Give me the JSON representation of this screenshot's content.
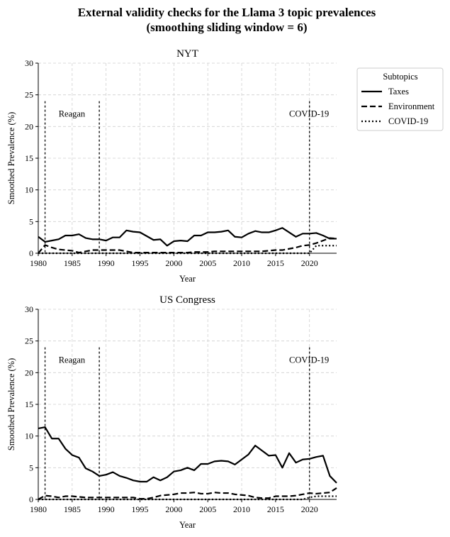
{
  "figure": {
    "title_line1": "External validity checks for the Llama 3 topic prevalences",
    "title_line2": "(smoothing sliding window = 6)"
  },
  "legend": {
    "title": "Subtopics",
    "placement": "upper-right-outside",
    "entries": [
      {
        "label": "Taxes",
        "style": "solid"
      },
      {
        "label": "Environment",
        "style": "dashed"
      },
      {
        "label": "COVID-19",
        "style": "dotted"
      }
    ]
  },
  "chart_data": [
    {
      "type": "line",
      "title": "NYT",
      "xlabel": "Year",
      "ylabel": "Smoothed Prevalence (%)",
      "xlim": [
        1980,
        2024
      ],
      "ylim": [
        0,
        30
      ],
      "xticks": [
        1980,
        1985,
        1990,
        1995,
        2000,
        2005,
        2010,
        2015,
        2020
      ],
      "yticks": [
        0,
        5,
        10,
        15,
        20,
        25,
        30
      ],
      "grid": true,
      "x": [
        1980,
        1981,
        1982,
        1983,
        1984,
        1985,
        1986,
        1987,
        1988,
        1989,
        1990,
        1991,
        1992,
        1993,
        1994,
        1995,
        1996,
        1997,
        1998,
        1999,
        2000,
        2001,
        2002,
        2003,
        2004,
        2005,
        2006,
        2007,
        2008,
        2009,
        2010,
        2011,
        2012,
        2013,
        2014,
        2015,
        2016,
        2017,
        2018,
        2019,
        2020,
        2021,
        2022,
        2023,
        2024
      ],
      "series": [
        {
          "name": "Taxes",
          "style": "solid",
          "values": [
            2.6,
            1.8,
            2.0,
            2.2,
            2.8,
            2.8,
            3.0,
            2.4,
            2.2,
            2.2,
            2.0,
            2.5,
            2.5,
            3.6,
            3.4,
            3.3,
            2.7,
            2.1,
            2.2,
            1.2,
            1.9,
            2.0,
            1.9,
            2.8,
            2.8,
            3.3,
            3.3,
            3.4,
            3.6,
            2.6,
            2.5,
            3.1,
            3.5,
            3.3,
            3.3,
            3.6,
            4.0,
            3.3,
            2.6,
            3.1,
            3.1,
            3.2,
            2.8,
            2.3,
            2.3
          ]
        },
        {
          "name": "Environment",
          "style": "dashed",
          "values": [
            0.0,
            1.3,
            0.9,
            0.6,
            0.5,
            0.4,
            0.1,
            0.3,
            0.5,
            0.5,
            0.5,
            0.5,
            0.5,
            0.3,
            0.1,
            0.1,
            0.1,
            0.1,
            0.1,
            0.1,
            0.1,
            0.1,
            0.1,
            0.2,
            0.2,
            0.2,
            0.3,
            0.3,
            0.3,
            0.3,
            0.3,
            0.3,
            0.3,
            0.3,
            0.4,
            0.5,
            0.5,
            0.7,
            0.9,
            1.2,
            1.3,
            1.6,
            2.0,
            2.4,
            2.3
          ]
        },
        {
          "name": "COVID-19",
          "style": "dotted",
          "values": [
            0,
            0,
            0,
            0,
            0,
            0,
            0,
            0,
            0,
            0,
            0,
            0,
            0,
            0,
            0,
            0,
            0,
            0,
            0,
            0,
            0,
            0,
            0,
            0,
            0,
            0,
            0,
            0,
            0,
            0,
            0,
            0,
            0,
            0,
            0,
            0,
            0,
            0,
            0,
            0,
            0,
            1.2,
            1.2,
            1.2,
            1.2
          ]
        }
      ],
      "vlines": [
        1981,
        1989,
        2020
      ],
      "annotations": [
        {
          "text": "Reagan",
          "x": 1983,
          "y": 22
        },
        {
          "text": "COVID-19",
          "x": 2017,
          "y": 22
        }
      ]
    },
    {
      "type": "line",
      "title": "US Congress",
      "xlabel": "Year",
      "ylabel": "Smoothed Prevalence (%)",
      "xlim": [
        1980,
        2024
      ],
      "ylim": [
        0,
        30
      ],
      "xticks": [
        1980,
        1985,
        1990,
        1995,
        2000,
        2005,
        2010,
        2015,
        2020
      ],
      "yticks": [
        0,
        5,
        10,
        15,
        20,
        25,
        30
      ],
      "grid": true,
      "x": [
        1980,
        1981,
        1982,
        1983,
        1984,
        1985,
        1986,
        1987,
        1988,
        1989,
        1990,
        1991,
        1992,
        1993,
        1994,
        1995,
        1996,
        1997,
        1998,
        1999,
        2000,
        2001,
        2002,
        2003,
        2004,
        2005,
        2006,
        2007,
        2008,
        2009,
        2010,
        2011,
        2012,
        2013,
        2014,
        2015,
        2016,
        2017,
        2018,
        2019,
        2020,
        2021,
        2022,
        2023,
        2024
      ],
      "series": [
        {
          "name": "Taxes",
          "style": "solid",
          "values": [
            11.2,
            11.4,
            9.6,
            9.6,
            8.0,
            7.0,
            6.6,
            4.9,
            4.4,
            3.7,
            3.9,
            4.3,
            3.7,
            3.4,
            3.0,
            2.8,
            2.8,
            3.5,
            3.0,
            3.5,
            4.4,
            4.6,
            5.0,
            4.6,
            5.6,
            5.6,
            6.0,
            6.1,
            6.0,
            5.5,
            6.3,
            7.1,
            8.5,
            7.7,
            6.9,
            7.0,
            5.0,
            7.3,
            5.8,
            6.3,
            6.4,
            6.7,
            6.9,
            3.7,
            2.6
          ]
        },
        {
          "name": "Environment",
          "style": "dashed",
          "values": [
            0.0,
            0.6,
            0.5,
            0.3,
            0.5,
            0.5,
            0.4,
            0.3,
            0.3,
            0.3,
            0.3,
            0.3,
            0.3,
            0.3,
            0.3,
            0.1,
            0.1,
            0.3,
            0.6,
            0.7,
            0.8,
            1.0,
            1.0,
            1.1,
            0.9,
            0.9,
            1.1,
            1.0,
            1.0,
            0.8,
            0.7,
            0.6,
            0.3,
            0.2,
            0.2,
            0.5,
            0.5,
            0.5,
            0.6,
            0.8,
            1.0,
            0.9,
            1.0,
            1.1,
            1.8
          ]
        },
        {
          "name": "COVID-19",
          "style": "dotted",
          "values": [
            0,
            0,
            0,
            0,
            0,
            0,
            0,
            0,
            0,
            0,
            0,
            0,
            0,
            0,
            0,
            0,
            0,
            0,
            0,
            0,
            0,
            0,
            0,
            0,
            0,
            0,
            0,
            0,
            0,
            0,
            0,
            0,
            0,
            0,
            0,
            0,
            0,
            0,
            0,
            0,
            0.3,
            0.5,
            0.5,
            0.5,
            0.5
          ]
        }
      ],
      "vlines": [
        1981,
        1989,
        2020
      ],
      "annotations": [
        {
          "text": "Reagan",
          "x": 1983,
          "y": 22
        },
        {
          "text": "COVID-19",
          "x": 2017,
          "y": 22
        }
      ]
    }
  ]
}
